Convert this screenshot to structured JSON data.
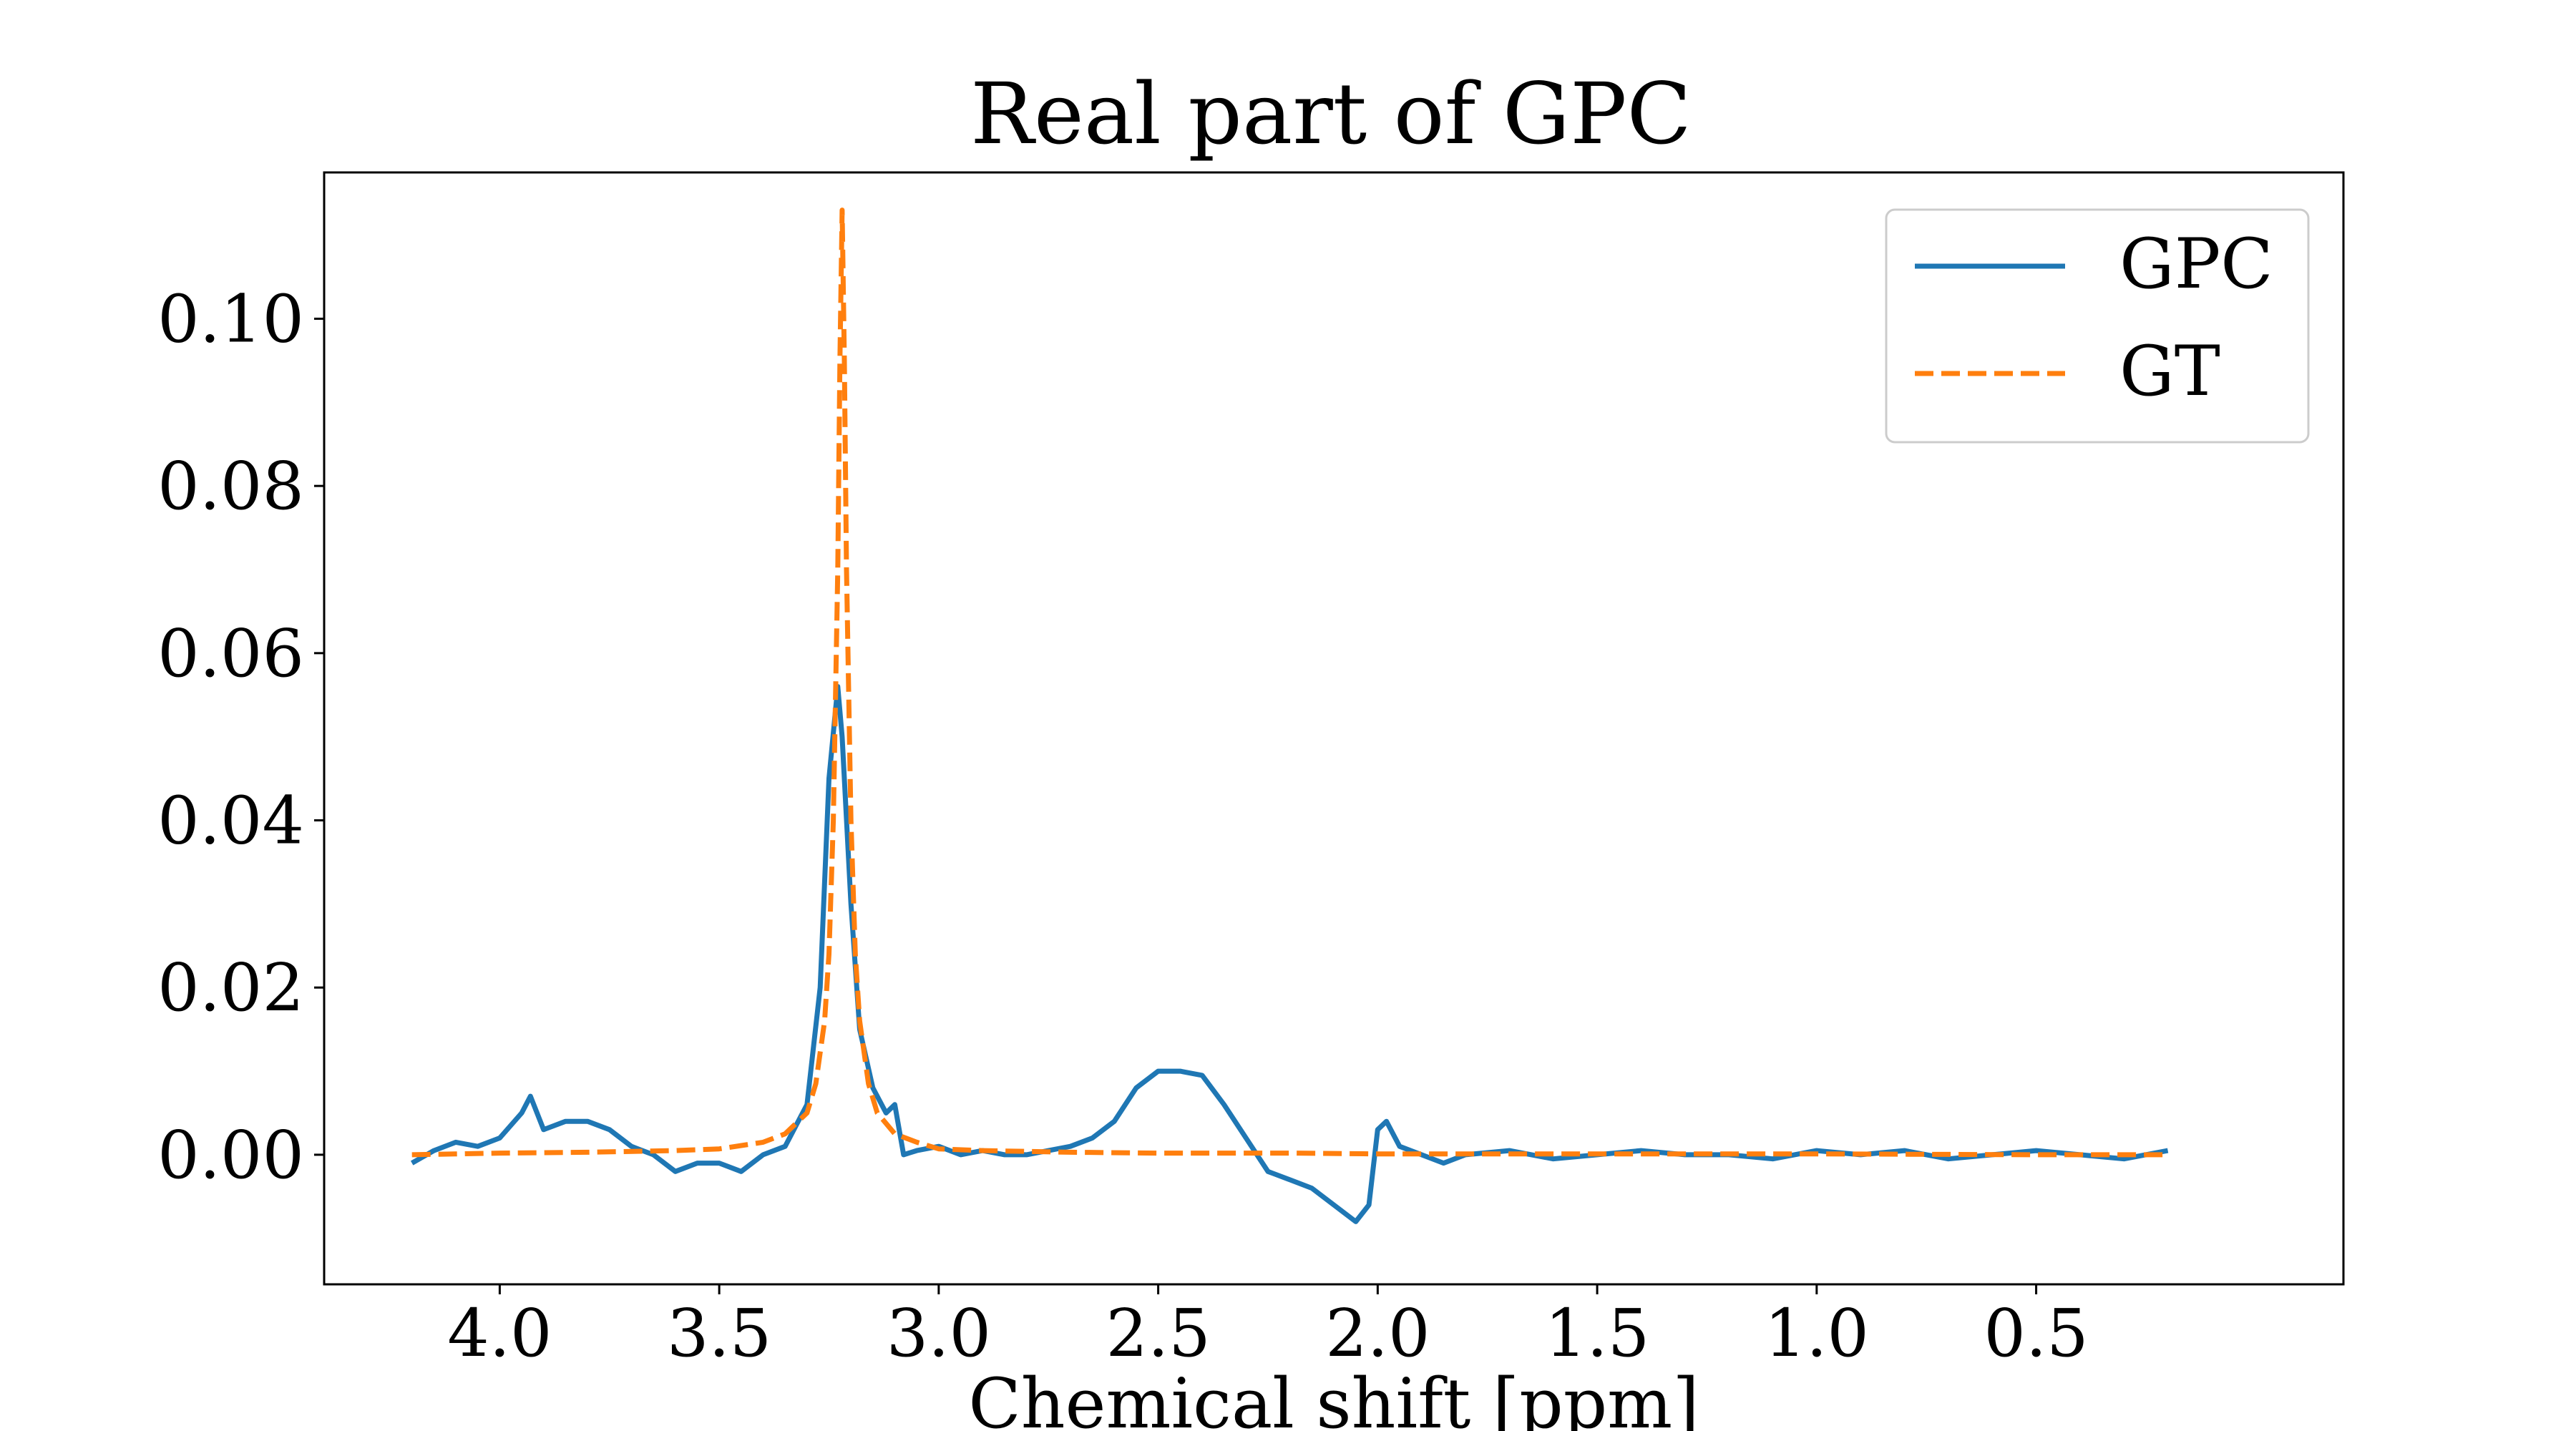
{
  "chart_data": {
    "type": "line",
    "title": "Real part of GPC",
    "xlabel": "Chemical shift [ppm]",
    "ylabel": "",
    "x_reversed": true,
    "xlim": [
      4.4,
      -0.2
    ],
    "ylim": [
      -0.0155,
      0.1175
    ],
    "xticks": [
      4.0,
      3.5,
      3.0,
      2.5,
      2.0,
      1.5,
      1.0,
      0.5
    ],
    "xtick_labels": [
      "4.0",
      "3.5",
      "3.0",
      "2.5",
      "2.0",
      "1.5",
      "1.0",
      "0.5"
    ],
    "yticks": [
      0.0,
      0.02,
      0.04,
      0.06,
      0.08,
      0.1
    ],
    "ytick_labels": [
      "0.00",
      "0.02",
      "0.04",
      "0.06",
      "0.08",
      "0.10"
    ],
    "grid": false,
    "legend_position": "top-right",
    "series": [
      {
        "name": "GPC",
        "color": "#1f77b4",
        "style": "solid",
        "x": [
          4.2,
          4.15,
          4.1,
          4.05,
          4.0,
          3.95,
          3.93,
          3.9,
          3.85,
          3.8,
          3.75,
          3.7,
          3.65,
          3.6,
          3.55,
          3.5,
          3.45,
          3.4,
          3.35,
          3.3,
          3.27,
          3.25,
          3.23,
          3.22,
          3.2,
          3.18,
          3.15,
          3.12,
          3.1,
          3.08,
          3.05,
          3.0,
          2.95,
          2.9,
          2.85,
          2.8,
          2.75,
          2.7,
          2.65,
          2.6,
          2.55,
          2.5,
          2.45,
          2.4,
          2.35,
          2.3,
          2.25,
          2.2,
          2.15,
          2.1,
          2.05,
          2.02,
          2.0,
          1.98,
          1.95,
          1.9,
          1.85,
          1.8,
          1.7,
          1.6,
          1.5,
          1.4,
          1.3,
          1.2,
          1.1,
          1.0,
          0.9,
          0.8,
          0.7,
          0.6,
          0.5,
          0.4,
          0.3,
          0.2
        ],
        "y": [
          -0.001,
          0.0005,
          0.0015,
          0.001,
          0.002,
          0.005,
          0.007,
          0.003,
          0.004,
          0.004,
          0.003,
          0.001,
          0.0,
          -0.002,
          -0.001,
          -0.001,
          -0.002,
          0.0,
          0.001,
          0.006,
          0.02,
          0.045,
          0.056,
          0.05,
          0.03,
          0.015,
          0.008,
          0.005,
          0.006,
          0.0,
          0.0005,
          0.001,
          0.0,
          0.0005,
          0.0,
          0.0,
          0.0005,
          0.001,
          0.002,
          0.004,
          0.008,
          0.01,
          0.01,
          0.0095,
          0.006,
          0.002,
          -0.002,
          -0.003,
          -0.004,
          -0.006,
          -0.008,
          -0.006,
          0.003,
          0.004,
          0.001,
          0.0,
          -0.001,
          0.0,
          0.0005,
          -0.0005,
          0.0,
          0.0005,
          0.0,
          0.0,
          -0.0005,
          0.0005,
          0.0,
          0.0005,
          -0.0005,
          0.0,
          0.0005,
          0.0,
          -0.0005,
          0.0005
        ]
      },
      {
        "name": "GT",
        "color": "#ff7f0e",
        "style": "dashed",
        "x": [
          4.2,
          4.0,
          3.8,
          3.6,
          3.5,
          3.4,
          3.35,
          3.3,
          3.28,
          3.26,
          3.25,
          3.24,
          3.23,
          3.225,
          3.22,
          3.215,
          3.21,
          3.2,
          3.19,
          3.18,
          3.16,
          3.14,
          3.1,
          3.05,
          3.0,
          2.9,
          2.7,
          2.5,
          2.2,
          2.0,
          1.5,
          1.0,
          0.5,
          0.2
        ],
        "y": [
          0.0,
          0.0002,
          0.0003,
          0.0005,
          0.0007,
          0.0015,
          0.0025,
          0.005,
          0.0085,
          0.016,
          0.024,
          0.04,
          0.07,
          0.095,
          0.113,
          0.095,
          0.07,
          0.04,
          0.024,
          0.016,
          0.0085,
          0.005,
          0.0025,
          0.0015,
          0.0007,
          0.0005,
          0.0003,
          0.0002,
          0.0002,
          0.0001,
          0.0001,
          0.0001,
          0.0,
          0.0
        ]
      }
    ]
  }
}
